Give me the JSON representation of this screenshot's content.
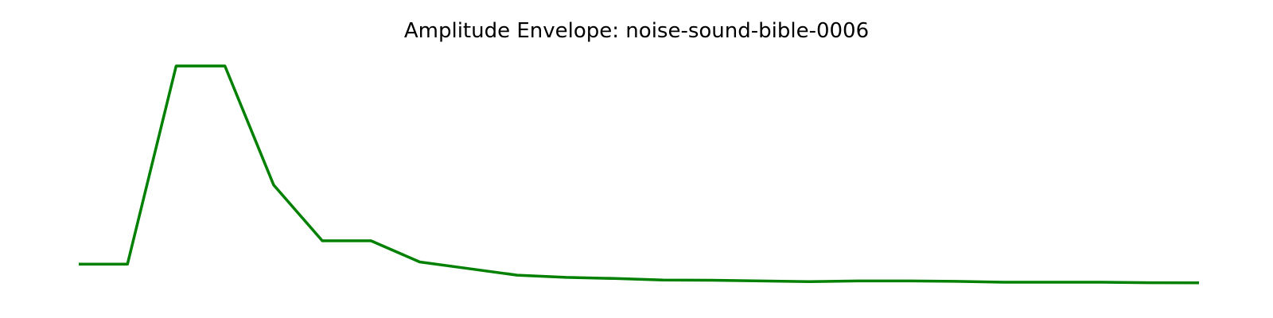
{
  "chart_data": {
    "type": "line",
    "title": "Amplitude Envelope: noise-sound-bible-0006",
    "x": [
      0,
      1,
      2,
      3,
      4,
      5,
      6,
      7,
      8,
      9,
      10,
      11,
      12,
      13,
      14,
      15,
      16,
      17,
      18,
      19,
      20,
      21,
      22,
      23
    ],
    "series": [
      {
        "color": "#008000",
        "values": [
          0.1,
          0.1,
          1.0,
          1.0,
          0.46,
          0.206,
          0.206,
          0.11,
          0.08,
          0.05,
          0.04,
          0.035,
          0.028,
          0.027,
          0.024,
          0.021,
          0.024,
          0.024,
          0.022,
          0.018,
          0.018,
          0.018,
          0.016,
          0.015
        ]
      }
    ],
    "xlim": [
      0,
      23
    ],
    "ylim": [
      0,
      1
    ],
    "axes_visible": false,
    "grid": false
  }
}
